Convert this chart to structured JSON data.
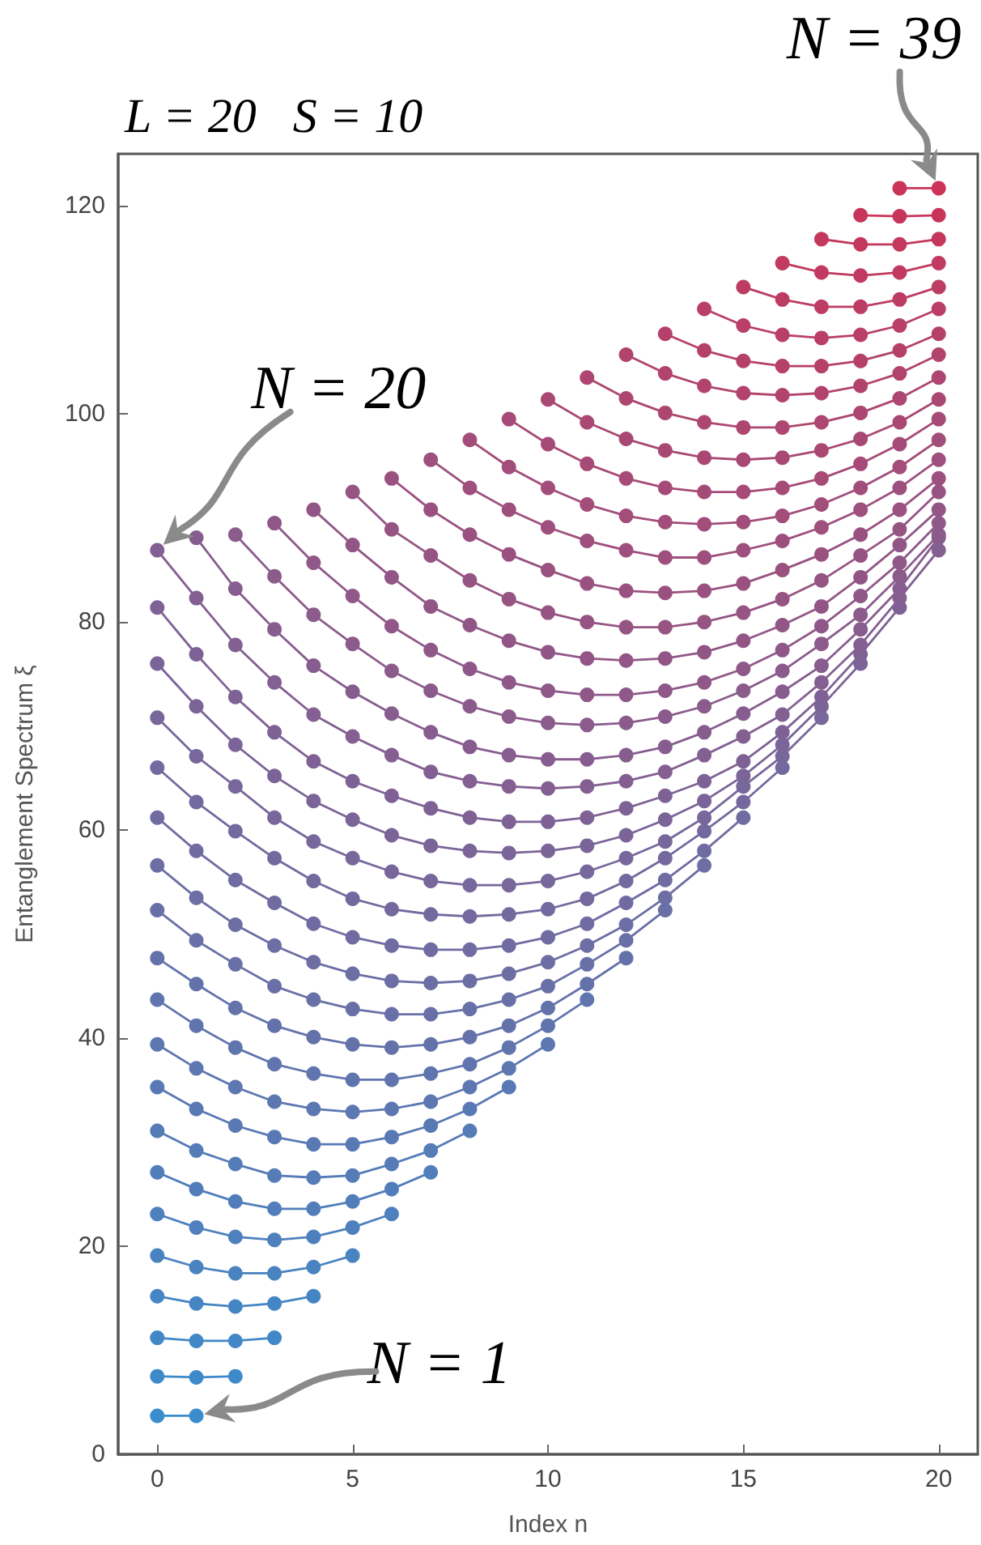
{
  "chart_data": {
    "type": "line",
    "title": "L = 20   S = 10",
    "xlabel": "Index n",
    "ylabel": "Entanglement Spectrum ξ",
    "xlim": [
      -1,
      21
    ],
    "ylim": [
      0,
      125
    ],
    "xticks": [
      0,
      5,
      10,
      15,
      20
    ],
    "yticks": [
      0,
      20,
      40,
      60,
      80,
      100,
      120
    ],
    "grid": false,
    "marker": "circle",
    "line_style": "solid",
    "annotations": [
      {
        "text": "N = 1",
        "x": 1,
        "y": 3.7
      },
      {
        "text": "N = 20",
        "x": 0,
        "y": 86.9
      },
      {
        "text": "N = 39",
        "x": 20,
        "y": 121.7
      }
    ],
    "series": [
      {
        "color": "#3a8ccc",
        "x": [
          0,
          1
        ],
        "values": [
          3.7,
          3.7
        ]
      },
      {
        "color": "#3e8ac9",
        "x": [
          0,
          1,
          2
        ],
        "values": [
          7.5,
          7.4,
          7.5
        ]
      },
      {
        "color": "#4287c6",
        "x": [
          0,
          1,
          2,
          3
        ],
        "values": [
          11.2,
          10.9,
          10.9,
          11.2
        ]
      },
      {
        "color": "#4685c3",
        "x": [
          0,
          1,
          2,
          3,
          4
        ],
        "values": [
          15.2,
          14.5,
          14.2,
          14.5,
          15.2
        ]
      },
      {
        "color": "#4983c0",
        "x": [
          0,
          1,
          2,
          3,
          4,
          5
        ],
        "values": [
          19.1,
          18.0,
          17.4,
          17.4,
          18.0,
          19.1
        ]
      },
      {
        "color": "#4d80bd",
        "x": [
          0,
          1,
          2,
          3,
          4,
          5,
          6
        ],
        "values": [
          23.1,
          21.8,
          20.9,
          20.6,
          20.9,
          21.8,
          23.1
        ]
      },
      {
        "color": "#517eba",
        "x": [
          0,
          1,
          2,
          3,
          4,
          5,
          6,
          7
        ],
        "values": [
          27.1,
          25.5,
          24.3,
          23.6,
          23.6,
          24.3,
          25.5,
          27.1
        ]
      },
      {
        "color": "#557cb7",
        "x": [
          0,
          1,
          2,
          3,
          4,
          5,
          6,
          7,
          8
        ],
        "values": [
          31.1,
          29.2,
          27.9,
          26.8,
          26.6,
          26.8,
          27.9,
          29.2,
          31.1
        ]
      },
      {
        "color": "#5979b4",
        "x": [
          0,
          1,
          2,
          3,
          4,
          5,
          6,
          7,
          8,
          9
        ],
        "values": [
          35.3,
          33.2,
          31.6,
          30.5,
          29.8,
          29.8,
          30.5,
          31.6,
          33.2,
          35.3
        ]
      },
      {
        "color": "#5d77b1",
        "x": [
          0,
          1,
          2,
          3,
          4,
          5,
          6,
          7,
          8,
          9,
          10
        ],
        "values": [
          39.4,
          37.1,
          35.3,
          33.9,
          33.2,
          32.9,
          33.2,
          33.9,
          35.3,
          37.1,
          39.4
        ]
      },
      {
        "color": "#6075ad",
        "x": [
          0,
          1,
          2,
          3,
          4,
          5,
          6,
          7,
          8,
          9,
          10,
          11
        ],
        "values": [
          43.7,
          41.2,
          39.1,
          37.5,
          36.6,
          36.0,
          36.0,
          36.6,
          37.5,
          39.1,
          41.2,
          43.7
        ]
      },
      {
        "color": "#6472aa",
        "x": [
          0,
          1,
          2,
          3,
          4,
          5,
          6,
          7,
          8,
          9,
          10,
          11,
          12
        ],
        "values": [
          47.7,
          45.2,
          42.9,
          41.2,
          40.1,
          39.4,
          39.1,
          39.4,
          40.1,
          41.2,
          42.9,
          45.2,
          47.7
        ]
      },
      {
        "color": "#6870a7",
        "x": [
          0,
          1,
          2,
          3,
          4,
          5,
          6,
          7,
          8,
          9,
          10,
          11,
          12,
          13
        ],
        "values": [
          52.3,
          49.4,
          47.1,
          45.0,
          43.7,
          42.8,
          42.3,
          42.3,
          42.8,
          43.7,
          45.0,
          47.1,
          49.4,
          52.3
        ]
      },
      {
        "color": "#6c6ea4",
        "x": [
          0,
          1,
          2,
          3,
          4,
          5,
          6,
          7,
          8,
          9,
          10,
          11,
          12,
          13,
          14
        ],
        "values": [
          56.6,
          53.5,
          50.9,
          48.9,
          47.3,
          46.2,
          45.5,
          45.3,
          45.5,
          46.2,
          47.3,
          48.9,
          50.9,
          53.5,
          56.6
        ]
      },
      {
        "color": "#706ba1",
        "x": [
          0,
          1,
          2,
          3,
          4,
          5,
          6,
          7,
          8,
          9,
          10,
          11,
          12,
          13,
          14,
          15
        ],
        "values": [
          61.2,
          58.0,
          55.2,
          53.0,
          51.0,
          49.7,
          48.9,
          48.5,
          48.5,
          48.9,
          49.7,
          51.0,
          53.0,
          55.2,
          58.0,
          61.2
        ]
      },
      {
        "color": "#74699e",
        "x": [
          0,
          1,
          2,
          3,
          4,
          5,
          6,
          7,
          8,
          9,
          10,
          11,
          12,
          13,
          14,
          15,
          16
        ],
        "values": [
          66.0,
          62.7,
          59.9,
          57.3,
          55.1,
          53.4,
          52.4,
          51.9,
          51.7,
          51.9,
          52.4,
          53.4,
          55.1,
          57.3,
          59.9,
          62.7,
          66.0
        ]
      },
      {
        "color": "#77679b",
        "x": [
          0,
          1,
          2,
          3,
          4,
          5,
          6,
          7,
          8,
          9,
          10,
          11,
          12,
          13,
          14,
          15,
          16,
          17
        ],
        "values": [
          70.8,
          67.1,
          64.2,
          61.2,
          58.9,
          57.3,
          56.0,
          55.1,
          54.7,
          54.7,
          55.1,
          56.0,
          57.3,
          58.9,
          61.2,
          64.2,
          67.1,
          70.8
        ]
      },
      {
        "color": "#7b6498",
        "x": [
          0,
          1,
          2,
          3,
          4,
          5,
          6,
          7,
          8,
          9,
          10,
          11,
          12,
          13,
          14,
          15,
          16,
          17,
          18
        ],
        "values": [
          76.0,
          71.9,
          68.2,
          65.2,
          62.8,
          61.0,
          59.5,
          58.5,
          58.0,
          57.8,
          58.0,
          58.5,
          59.5,
          61.0,
          62.8,
          65.2,
          68.2,
          71.9,
          76.0
        ]
      },
      {
        "color": "#7f6295",
        "x": [
          0,
          1,
          2,
          3,
          4,
          5,
          6,
          7,
          8,
          9,
          10,
          11,
          12,
          13,
          14,
          15,
          16,
          17,
          18,
          19
        ],
        "values": [
          81.4,
          76.9,
          72.8,
          69.4,
          66.6,
          64.7,
          63.3,
          62.1,
          61.2,
          60.8,
          60.8,
          61.2,
          62.1,
          63.3,
          64.7,
          66.6,
          69.4,
          72.8,
          76.9,
          81.4
        ]
      },
      {
        "color": "#835f92",
        "x": [
          0,
          1,
          2,
          3,
          4,
          5,
          6,
          7,
          8,
          9,
          10,
          11,
          12,
          13,
          14,
          15,
          16,
          17,
          18,
          19,
          20
        ],
        "values": [
          86.9,
          82.3,
          77.8,
          74.2,
          71.1,
          69.0,
          67.2,
          65.6,
          64.7,
          64.2,
          64.0,
          64.2,
          64.7,
          65.6,
          67.2,
          69.0,
          71.1,
          74.2,
          77.8,
          82.3,
          86.9
        ]
      },
      {
        "color": "#875d8f",
        "x": [
          1,
          2,
          3,
          4,
          5,
          6,
          7,
          8,
          9,
          10,
          11,
          12,
          13,
          14,
          15,
          16,
          17,
          18,
          19,
          20
        ],
        "values": [
          88.1,
          83.2,
          79.3,
          75.8,
          73.3,
          71.2,
          69.4,
          68.0,
          67.2,
          66.8,
          66.8,
          67.2,
          68.0,
          69.4,
          71.2,
          73.3,
          75.8,
          79.3,
          83.2,
          88.1
        ]
      },
      {
        "color": "#8b5b8c",
        "x": [
          2,
          3,
          4,
          5,
          6,
          7,
          8,
          9,
          10,
          11,
          12,
          13,
          14,
          15,
          16,
          17,
          18,
          19,
          20
        ],
        "values": [
          88.4,
          84.4,
          80.7,
          77.9,
          75.3,
          73.4,
          71.9,
          70.9,
          70.3,
          70.1,
          70.3,
          70.9,
          71.9,
          73.4,
          75.3,
          77.9,
          80.7,
          84.4,
          88.4
        ]
      },
      {
        "color": "#8f5889",
        "x": [
          3,
          4,
          5,
          6,
          7,
          8,
          9,
          10,
          11,
          12,
          13,
          14,
          15,
          16,
          17,
          18,
          19,
          20
        ],
        "values": [
          89.5,
          85.7,
          82.5,
          79.6,
          77.3,
          75.5,
          74.2,
          73.4,
          73.0,
          73.0,
          73.4,
          74.2,
          75.5,
          77.3,
          79.6,
          82.5,
          85.7,
          89.5
        ]
      },
      {
        "color": "#925686",
        "x": [
          4,
          5,
          6,
          7,
          8,
          9,
          10,
          11,
          12,
          13,
          14,
          15,
          16,
          17,
          18,
          19,
          20
        ],
        "values": [
          90.8,
          87.4,
          84.3,
          81.5,
          79.7,
          78.2,
          77.1,
          76.5,
          76.3,
          76.5,
          77.1,
          78.2,
          79.7,
          81.5,
          84.3,
          87.4,
          90.8
        ]
      },
      {
        "color": "#965483",
        "x": [
          5,
          6,
          7,
          8,
          9,
          10,
          11,
          12,
          13,
          14,
          15,
          16,
          17,
          18,
          19,
          20
        ],
        "values": [
          92.5,
          88.9,
          86.4,
          84.0,
          82.2,
          80.9,
          80.0,
          79.5,
          79.5,
          80.0,
          80.9,
          82.2,
          84.0,
          86.4,
          88.9,
          92.5
        ]
      },
      {
        "color": "#9a5180",
        "x": [
          6,
          7,
          8,
          9,
          10,
          11,
          12,
          13,
          14,
          15,
          16,
          17,
          18,
          19,
          20
        ],
        "values": [
          93.8,
          90.8,
          88.4,
          86.5,
          85.0,
          83.7,
          83.0,
          82.8,
          83.0,
          83.7,
          85.0,
          86.5,
          88.4,
          90.8,
          93.8
        ]
      },
      {
        "color": "#9e4f7d",
        "x": [
          7,
          8,
          9,
          10,
          11,
          12,
          13,
          14,
          15,
          16,
          17,
          18,
          19,
          20
        ],
        "values": [
          95.6,
          92.9,
          90.8,
          89.1,
          87.8,
          86.9,
          86.2,
          86.2,
          86.9,
          87.8,
          89.1,
          90.8,
          92.9,
          95.6
        ]
      },
      {
        "color": "#a24d7a",
        "x": [
          8,
          9,
          10,
          11,
          12,
          13,
          14,
          15,
          16,
          17,
          18,
          19,
          20
        ],
        "values": [
          97.5,
          94.9,
          92.9,
          91.3,
          90.2,
          89.6,
          89.4,
          89.6,
          90.2,
          91.3,
          92.9,
          94.9,
          97.5
        ]
      },
      {
        "color": "#a64a77",
        "x": [
          9,
          10,
          11,
          12,
          13,
          14,
          15,
          16,
          17,
          18,
          19,
          20
        ],
        "values": [
          99.5,
          97.1,
          95.2,
          93.8,
          92.9,
          92.5,
          92.5,
          92.9,
          93.8,
          95.2,
          97.1,
          99.5
        ]
      },
      {
        "color": "#a94873",
        "x": [
          10,
          11,
          12,
          13,
          14,
          15,
          16,
          17,
          18,
          19,
          20
        ],
        "values": [
          101.4,
          99.2,
          97.6,
          96.5,
          95.8,
          95.6,
          95.8,
          96.5,
          97.6,
          99.2,
          101.4
        ]
      },
      {
        "color": "#ad4670",
        "x": [
          11,
          12,
          13,
          14,
          15,
          16,
          17,
          18,
          19,
          20
        ],
        "values": [
          103.5,
          101.5,
          100.1,
          99.2,
          98.7,
          98.7,
          99.2,
          100.1,
          101.5,
          103.5
        ]
      },
      {
        "color": "#b1436d",
        "x": [
          12,
          13,
          14,
          15,
          16,
          17,
          18,
          19,
          20
        ],
        "values": [
          105.7,
          103.9,
          102.7,
          102.0,
          101.8,
          102.0,
          102.7,
          103.9,
          105.7
        ]
      },
      {
        "color": "#b5416a",
        "x": [
          13,
          14,
          15,
          16,
          17,
          18,
          19,
          20
        ],
        "values": [
          107.7,
          106.1,
          105.1,
          104.6,
          104.6,
          105.1,
          106.1,
          107.7
        ]
      },
      {
        "color": "#b93f67",
        "x": [
          14,
          15,
          16,
          17,
          18,
          19,
          20
        ],
        "values": [
          110.1,
          108.5,
          107.6,
          107.3,
          107.6,
          108.5,
          110.1
        ]
      },
      {
        "color": "#bd3c64",
        "x": [
          15,
          16,
          17,
          18,
          19,
          20
        ],
        "values": [
          112.2,
          111.0,
          110.3,
          110.3,
          111.0,
          112.2
        ]
      },
      {
        "color": "#c03a61",
        "x": [
          16,
          17,
          18,
          19,
          20
        ],
        "values": [
          114.5,
          113.6,
          113.3,
          113.6,
          114.5
        ]
      },
      {
        "color": "#c4385e",
        "x": [
          17,
          18,
          19,
          20
        ],
        "values": [
          116.8,
          116.3,
          116.3,
          116.8
        ]
      },
      {
        "color": "#c8355b",
        "x": [
          18,
          19,
          20
        ],
        "values": [
          119.1,
          119.0,
          119.1
        ]
      },
      {
        "color": "#cc3358",
        "x": [
          19,
          20
        ],
        "values": [
          121.7,
          121.7
        ]
      }
    ]
  }
}
